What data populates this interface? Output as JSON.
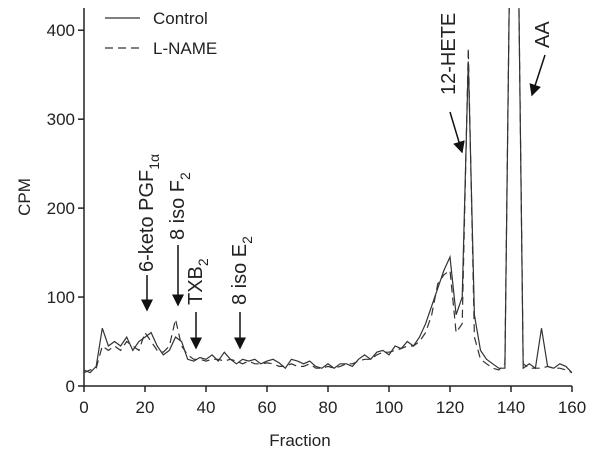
{
  "chart_data": {
    "type": "line",
    "x_label": "Fraction",
    "y_label": "CPM",
    "x": [
      0,
      2,
      4,
      6,
      8,
      10,
      12,
      14,
      16,
      18,
      20,
      22,
      24,
      26,
      28,
      30,
      32,
      34,
      36,
      38,
      40,
      42,
      44,
      46,
      48,
      50,
      52,
      54,
      56,
      58,
      60,
      62,
      64,
      66,
      68,
      70,
      72,
      74,
      76,
      78,
      80,
      82,
      84,
      86,
      88,
      90,
      92,
      94,
      96,
      98,
      100,
      102,
      104,
      106,
      108,
      110,
      112,
      114,
      116,
      118,
      120,
      122,
      124,
      126,
      128,
      130,
      132,
      134,
      136,
      138,
      140,
      142,
      144,
      146,
      148,
      150,
      152,
      154,
      156,
      158,
      160
    ],
    "series": [
      {
        "name": "Control",
        "color": "#333333",
        "dash": "none",
        "values": [
          18,
          15,
          22,
          65,
          45,
          50,
          45,
          55,
          40,
          50,
          55,
          60,
          45,
          35,
          40,
          55,
          50,
          30,
          28,
          32,
          30,
          35,
          28,
          38,
          30,
          25,
          30,
          28,
          30,
          25,
          28,
          30,
          26,
          20,
          30,
          28,
          25,
          28,
          22,
          20,
          25,
          20,
          25,
          25,
          22,
          30,
          35,
          30,
          38,
          40,
          35,
          45,
          42,
          50,
          45,
          55,
          70,
          90,
          110,
          130,
          145,
          80,
          100,
          365,
          80,
          40,
          30,
          25,
          20,
          20,
          600,
          600,
          20,
          25,
          20,
          65,
          22,
          20,
          25,
          22,
          15
        ]
      },
      {
        "name": "L-NAME",
        "color": "#333333",
        "dash": "8,5",
        "values": [
          15,
          18,
          20,
          45,
          40,
          45,
          40,
          50,
          45,
          40,
          60,
          50,
          40,
          38,
          45,
          75,
          45,
          35,
          30,
          30,
          28,
          30,
          30,
          28,
          30,
          28,
          25,
          28,
          25,
          25,
          26,
          25,
          22,
          22,
          25,
          22,
          22,
          25,
          20,
          20,
          22,
          20,
          22,
          25,
          25,
          28,
          30,
          30,
          35,
          38,
          38,
          40,
          42,
          45,
          45,
          50,
          60,
          80,
          115,
          125,
          130,
          60,
          70,
          380,
          55,
          30,
          25,
          20,
          18,
          25,
          600,
          600,
          25,
          20,
          20,
          20,
          22,
          20,
          20,
          18,
          15
        ]
      }
    ],
    "xlim": [
      0,
      160
    ],
    "xticks": [
      0,
      20,
      40,
      60,
      80,
      100,
      120,
      140,
      160
    ],
    "ylim": [
      0,
      425
    ],
    "yticks": [
      0,
      100,
      200,
      300,
      400
    ],
    "legend": "upper left",
    "annotations": [
      {
        "text": "6-keto PGF",
        "sub": "1α"
      },
      {
        "text": "8 iso F",
        "sub": "2"
      },
      {
        "text": "TXB",
        "sub": "2"
      },
      {
        "text": "8 iso E",
        "sub": "2"
      },
      {
        "text": "12-HETE"
      },
      {
        "text": "AA"
      }
    ]
  }
}
